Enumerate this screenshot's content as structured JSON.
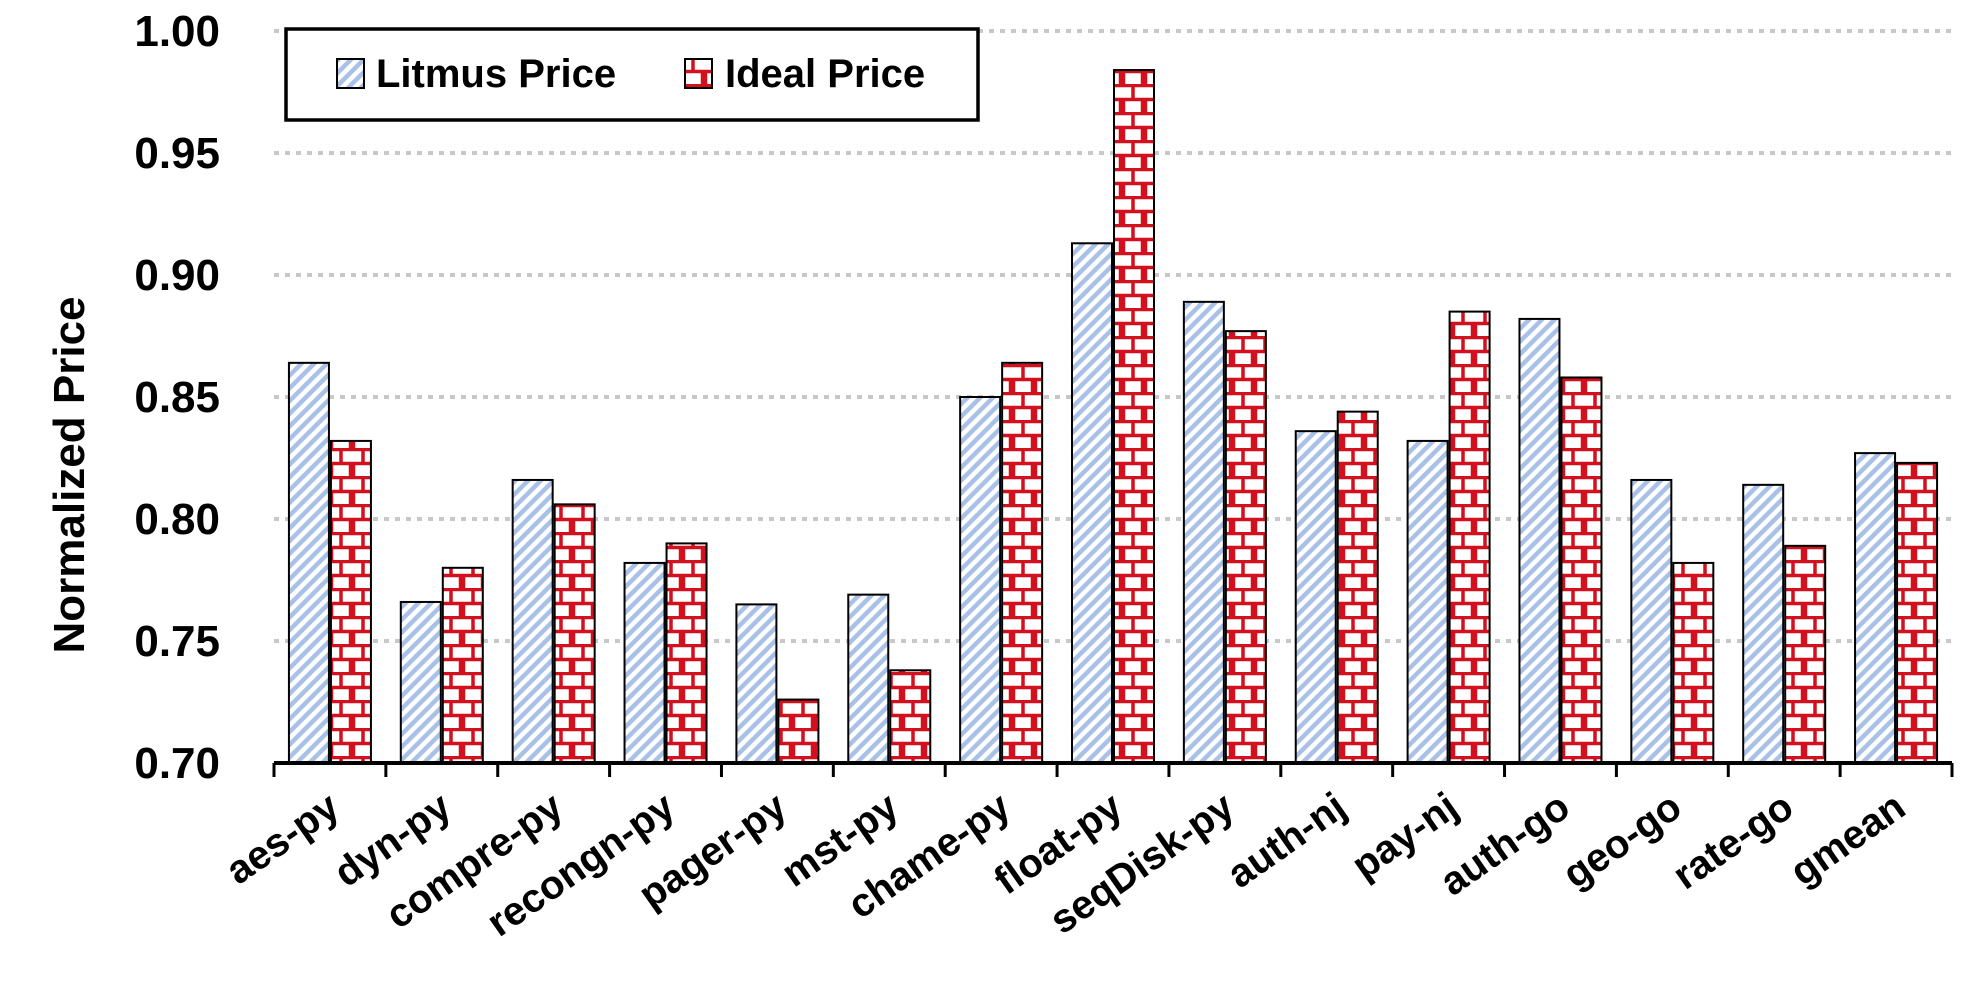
{
  "colors": {
    "litmus_fill": "#a9c1e6",
    "ideal_fill": "#d2101e",
    "bar_outline": "#000000",
    "grid": "#c8c8c8"
  },
  "chart_data": {
    "type": "bar",
    "title": "",
    "xlabel": "",
    "ylabel": "Normalized Price",
    "ylim": [
      0.7,
      1.0
    ],
    "yticks": [
      "0.70",
      "0.75",
      "0.80",
      "0.85",
      "0.90",
      "0.95",
      "1.00"
    ],
    "grid": true,
    "legend_position": "top-left",
    "categories": [
      "aes-py",
      "dyn-py",
      "compre-py",
      "recongn-py",
      "pager-py",
      "mst-py",
      "chame-py",
      "float-py",
      "seqDisk-py",
      "auth-nj",
      "pay-nj",
      "auth-go",
      "geo-go",
      "rate-go",
      "gmean"
    ],
    "series": [
      {
        "name": "Litmus Price",
        "pattern": "diagonal-stripes",
        "values": [
          0.864,
          0.766,
          0.816,
          0.782,
          0.765,
          0.769,
          0.85,
          0.913,
          0.889,
          0.836,
          0.832,
          0.882,
          0.816,
          0.814,
          0.827
        ]
      },
      {
        "name": "Ideal Price",
        "pattern": "brick",
        "values": [
          0.832,
          0.78,
          0.806,
          0.79,
          0.726,
          0.738,
          0.864,
          0.984,
          0.877,
          0.844,
          0.885,
          0.858,
          0.782,
          0.789,
          0.823
        ]
      }
    ]
  }
}
